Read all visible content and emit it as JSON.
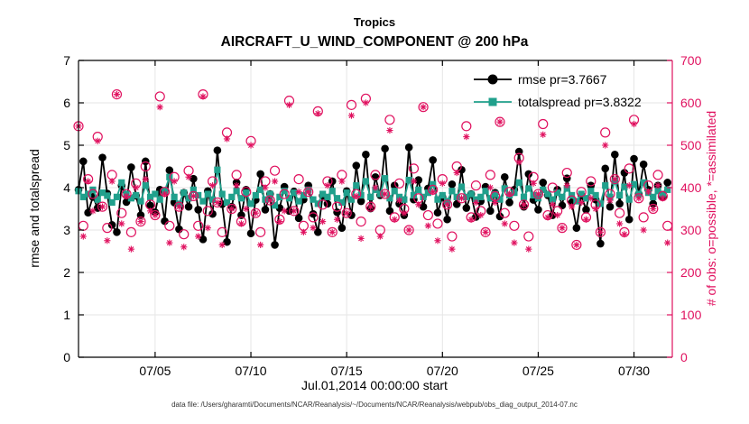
{
  "title": {
    "line1": "Tropics",
    "line2": "AIRCRAFT_U_WIND_COMPONENT @ 200 hPa"
  },
  "xlabel": "Jul.01,2014 00:00:00 start",
  "ylabel_left": "rmse and totalspread",
  "ylabel_right": "# of obs: o=possible, *=assimilated",
  "caption": "data file: /Users/gharamti/Documents/NCAR/Reanalysis/~/Documents/NCAR/Reanalysis/webpub/obs_diag_output_2014-07.nc",
  "colors": {
    "rmse": "#000000",
    "spread": "#20A08C",
    "obs": "#E0115F",
    "grid": "#E6E6E6"
  },
  "chart_data": {
    "type": "line",
    "title": "Tropics — AIRCRAFT_U_WIND_COMPONENT @ 200 hPa",
    "x_unit": "day of July 2014, 6-hourly samples",
    "x_start": 1,
    "x_step": 0.25,
    "n_points": 124,
    "x_axis": {
      "min": 1,
      "max": 32,
      "ticks": [
        5,
        10,
        15,
        20,
        25,
        30
      ],
      "tick_labels": [
        "07/05",
        "07/10",
        "07/15",
        "07/20",
        "07/25",
        "07/30"
      ]
    },
    "y_left": {
      "min": 0,
      "max": 7,
      "ticks": [
        0,
        1,
        2,
        3,
        4,
        5,
        6,
        7
      ],
      "label": "rmse and totalspread"
    },
    "y_right": {
      "min": 0,
      "max": 700,
      "ticks": [
        0,
        100,
        200,
        300,
        400,
        500,
        600,
        700
      ],
      "label": "# of obs: o=possible, *=assimilated"
    },
    "grid": true,
    "legend_position": "upper right inside",
    "series": [
      {
        "name": "rmse pr=3.7667",
        "color": "#000000",
        "marker": "circle",
        "axis": "left",
        "values": [
          3.95,
          4.62,
          3.41,
          3.78,
          3.52,
          4.71,
          3.86,
          3.12,
          2.95,
          4.05,
          3.66,
          4.48,
          3.81,
          3.35,
          4.62,
          3.58,
          3.42,
          3.95,
          3.21,
          4.41,
          3.65,
          3.02,
          3.88,
          3.55,
          4.21,
          3.48,
          2.78,
          3.92,
          3.38,
          4.88,
          3.61,
          2.72,
          3.55,
          4.12,
          3.35,
          3.95,
          2.92,
          3.71,
          4.32,
          3.48,
          3.85,
          2.65,
          3.52,
          4.02,
          3.45,
          3.91,
          3.28,
          3.72,
          4.05,
          3.38,
          2.95,
          3.81,
          3.62,
          4.15,
          3.42,
          3.05,
          3.92,
          3.35,
          4.52,
          3.68,
          4.78,
          3.51,
          4.25,
          3.82,
          4.92,
          3.45,
          4.05,
          3.62,
          3.35,
          4.95,
          3.72,
          4.18,
          3.55,
          3.98,
          4.65,
          3.41,
          3.78,
          3.25,
          4.08,
          3.61,
          4.42,
          3.52,
          3.85,
          3.31,
          3.68,
          4.02,
          3.45,
          3.88,
          3.32,
          4.25,
          3.65,
          3.95,
          4.85,
          3.55,
          4.32,
          3.71,
          3.48,
          4.12,
          3.82,
          3.35,
          3.95,
          3.58,
          4.22,
          3.65,
          3.05,
          3.82,
          3.48,
          4.05,
          3.72,
          2.68,
          4.45,
          3.55,
          4.78,
          3.62,
          4.35,
          3.25,
          4.68,
          3.85,
          4.55,
          3.95,
          3.62,
          4.05,
          3.78,
          4.12
        ]
      },
      {
        "name": "totalspread pr=3.8322",
        "color": "#20A08C",
        "marker": "square",
        "axis": "left",
        "values": [
          3.92,
          3.78,
          3.85,
          3.95,
          3.72,
          3.88,
          3.81,
          3.65,
          3.78,
          4.12,
          3.85,
          3.75,
          3.82,
          3.68,
          4.05,
          3.78,
          3.85,
          3.72,
          3.92,
          4.25,
          3.78,
          3.62,
          3.88,
          3.75,
          3.95,
          3.82,
          3.68,
          3.85,
          3.72,
          4.42,
          3.85,
          3.65,
          3.78,
          3.92,
          3.75,
          3.88,
          3.62,
          3.82,
          3.95,
          3.72,
          3.85,
          3.58,
          3.78,
          3.92,
          3.75,
          3.88,
          3.68,
          3.82,
          3.95,
          3.72,
          3.62,
          3.85,
          3.78,
          3.92,
          3.75,
          3.65,
          3.88,
          3.72,
          4.05,
          3.82,
          4.15,
          3.78,
          3.95,
          3.85,
          4.22,
          3.75,
          3.92,
          3.78,
          3.72,
          4.18,
          3.82,
          3.95,
          3.78,
          3.88,
          4.08,
          3.72,
          3.82,
          3.68,
          3.92,
          3.78,
          4.02,
          3.78,
          3.85,
          3.72,
          3.78,
          3.92,
          3.75,
          3.85,
          3.72,
          3.98,
          3.82,
          3.88,
          4.12,
          3.78,
          3.98,
          3.82,
          3.75,
          3.95,
          3.85,
          3.72,
          3.88,
          3.78,
          3.98,
          3.82,
          3.68,
          3.85,
          3.75,
          3.92,
          3.82,
          3.62,
          4.05,
          3.78,
          4.15,
          3.82,
          4.02,
          3.72,
          4.08,
          3.85,
          4.12,
          3.88,
          3.78,
          3.92,
          3.85,
          3.95
        ]
      },
      {
        "name": "# of obs possible",
        "color": "#E0115F",
        "marker": "open-circle",
        "axis": "right",
        "values": [
          545,
          310,
          420,
          385,
          520,
          355,
          305,
          430,
          620,
          340,
          385,
          295,
          410,
          320,
          450,
          360,
          335,
          615,
          390,
          310,
          425,
          355,
          290,
          440,
          380,
          310,
          620,
          345,
          415,
          365,
          295,
          530,
          350,
          430,
          320,
          390,
          510,
          340,
          295,
          415,
          370,
          440,
          325,
          385,
          605,
          345,
          420,
          310,
          390,
          330,
          580,
          360,
          415,
          295,
          355,
          430,
          340,
          595,
          385,
          320,
          610,
          355,
          430,
          300,
          385,
          560,
          330,
          410,
          350,
          300,
          445,
          375,
          590,
          335,
          395,
          315,
          420,
          360,
          285,
          450,
          375,
          545,
          330,
          405,
          345,
          295,
          430,
          380,
          555,
          340,
          390,
          310,
          470,
          360,
          285,
          425,
          385,
          550,
          335,
          400,
          345,
          305,
          435,
          370,
          265,
          390,
          330,
          415,
          360,
          295,
          530,
          385,
          420,
          340,
          295,
          445,
          560,
          375,
          330,
          405,
          350,
          430,
          380,
          310
        ]
      },
      {
        "name": "# of obs assimilated",
        "color": "#E0115F",
        "marker": "asterisk",
        "axis": "right",
        "values": [
          545,
          285,
          415,
          345,
          510,
          355,
          275,
          415,
          620,
          315,
          380,
          255,
          400,
          320,
          420,
          345,
          335,
          590,
          385,
          270,
          415,
          355,
          260,
          425,
          380,
          285,
          615,
          305,
          405,
          365,
          265,
          515,
          350,
          405,
          315,
          350,
          500,
          340,
          265,
          400,
          370,
          415,
          320,
          345,
          595,
          345,
          390,
          295,
          390,
          305,
          575,
          320,
          405,
          295,
          325,
          415,
          340,
          570,
          380,
          280,
          600,
          355,
          400,
          285,
          385,
          535,
          325,
          370,
          340,
          300,
          415,
          360,
          590,
          310,
          390,
          275,
          410,
          360,
          255,
          435,
          375,
          520,
          325,
          365,
          335,
          295,
          400,
          365,
          555,
          315,
          385,
          270,
          460,
          360,
          255,
          410,
          385,
          525,
          330,
          360,
          335,
          305,
          405,
          355,
          265,
          365,
          325,
          375,
          350,
          295,
          500,
          370,
          420,
          315,
          290,
          405,
          550,
          375,
          300,
          390,
          350,
          405,
          375,
          270
        ]
      }
    ]
  }
}
